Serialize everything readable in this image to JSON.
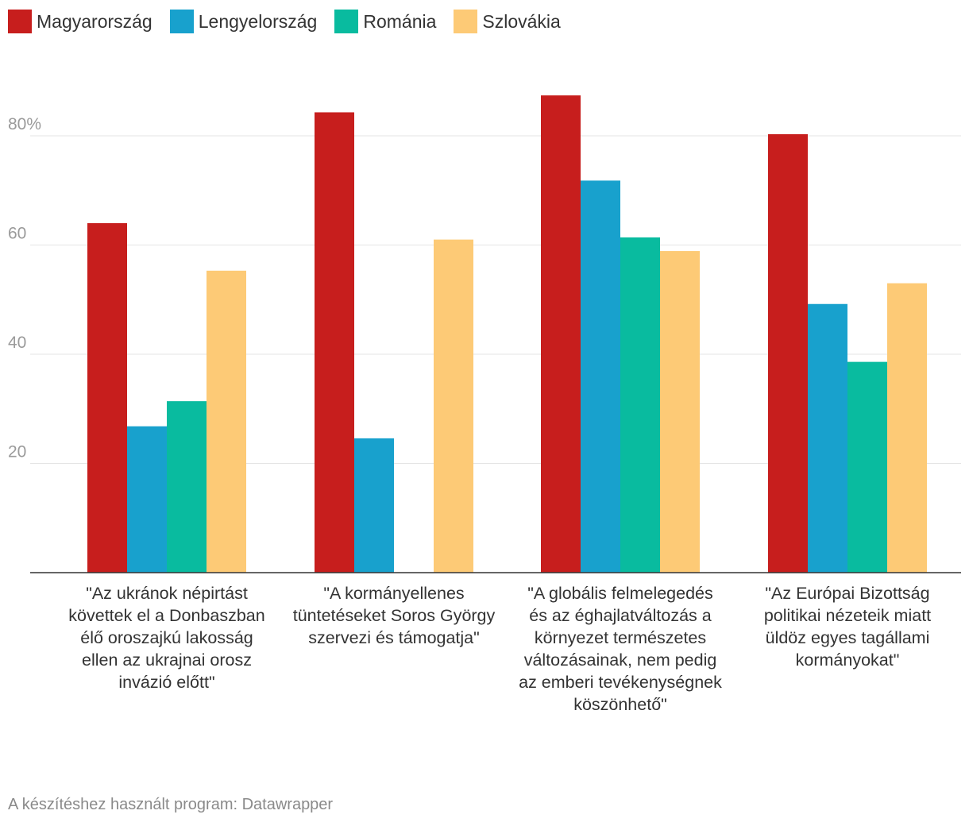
{
  "chart_data": {
    "type": "bar",
    "title": "",
    "xlabel": "",
    "ylabel": "",
    "ylim": [
      0,
      90
    ],
    "yticks": [
      {
        "value": 20,
        "label": "20"
      },
      {
        "value": 40,
        "label": "40"
      },
      {
        "value": 60,
        "label": "60"
      },
      {
        "value": 80,
        "label": "80%"
      }
    ],
    "categories": [
      "\"Az ukránok népirtást követtek el a Donbaszban élő oroszajkú lakosság ellen az ukrajnai orosz invázió előtt\"",
      "\"A kormányellenes tüntetéseket Soros György szervezi és támogatja\"",
      "\"A globális felmelegedés és az éghajlatváltozás a környezet természetes változásainak, nem pedig az emberi tevékenységnek köszönhető\"",
      "\"Az Európai Bizottság politikai nézeteik miatt üldöz egyes tagállami kormányokat\""
    ],
    "series": [
      {
        "name": "Magyarország",
        "color": "#c71e1d",
        "values": [
          64,
          84.3,
          87.4,
          80.3
        ]
      },
      {
        "name": "Lengyelország",
        "color": "#18a1cd",
        "values": [
          26.8,
          24.6,
          71.8,
          49.2
        ]
      },
      {
        "name": "Románia",
        "color": "#09bb9f",
        "values": [
          31.4,
          null,
          61.4,
          38.6
        ]
      },
      {
        "name": "Szlovákia",
        "color": "#fdca76",
        "values": [
          55.3,
          61,
          58.9,
          53
        ]
      }
    ],
    "legend": "top-left",
    "grid": true
  },
  "footer": "A készítéshez használt program: Datawrapper"
}
